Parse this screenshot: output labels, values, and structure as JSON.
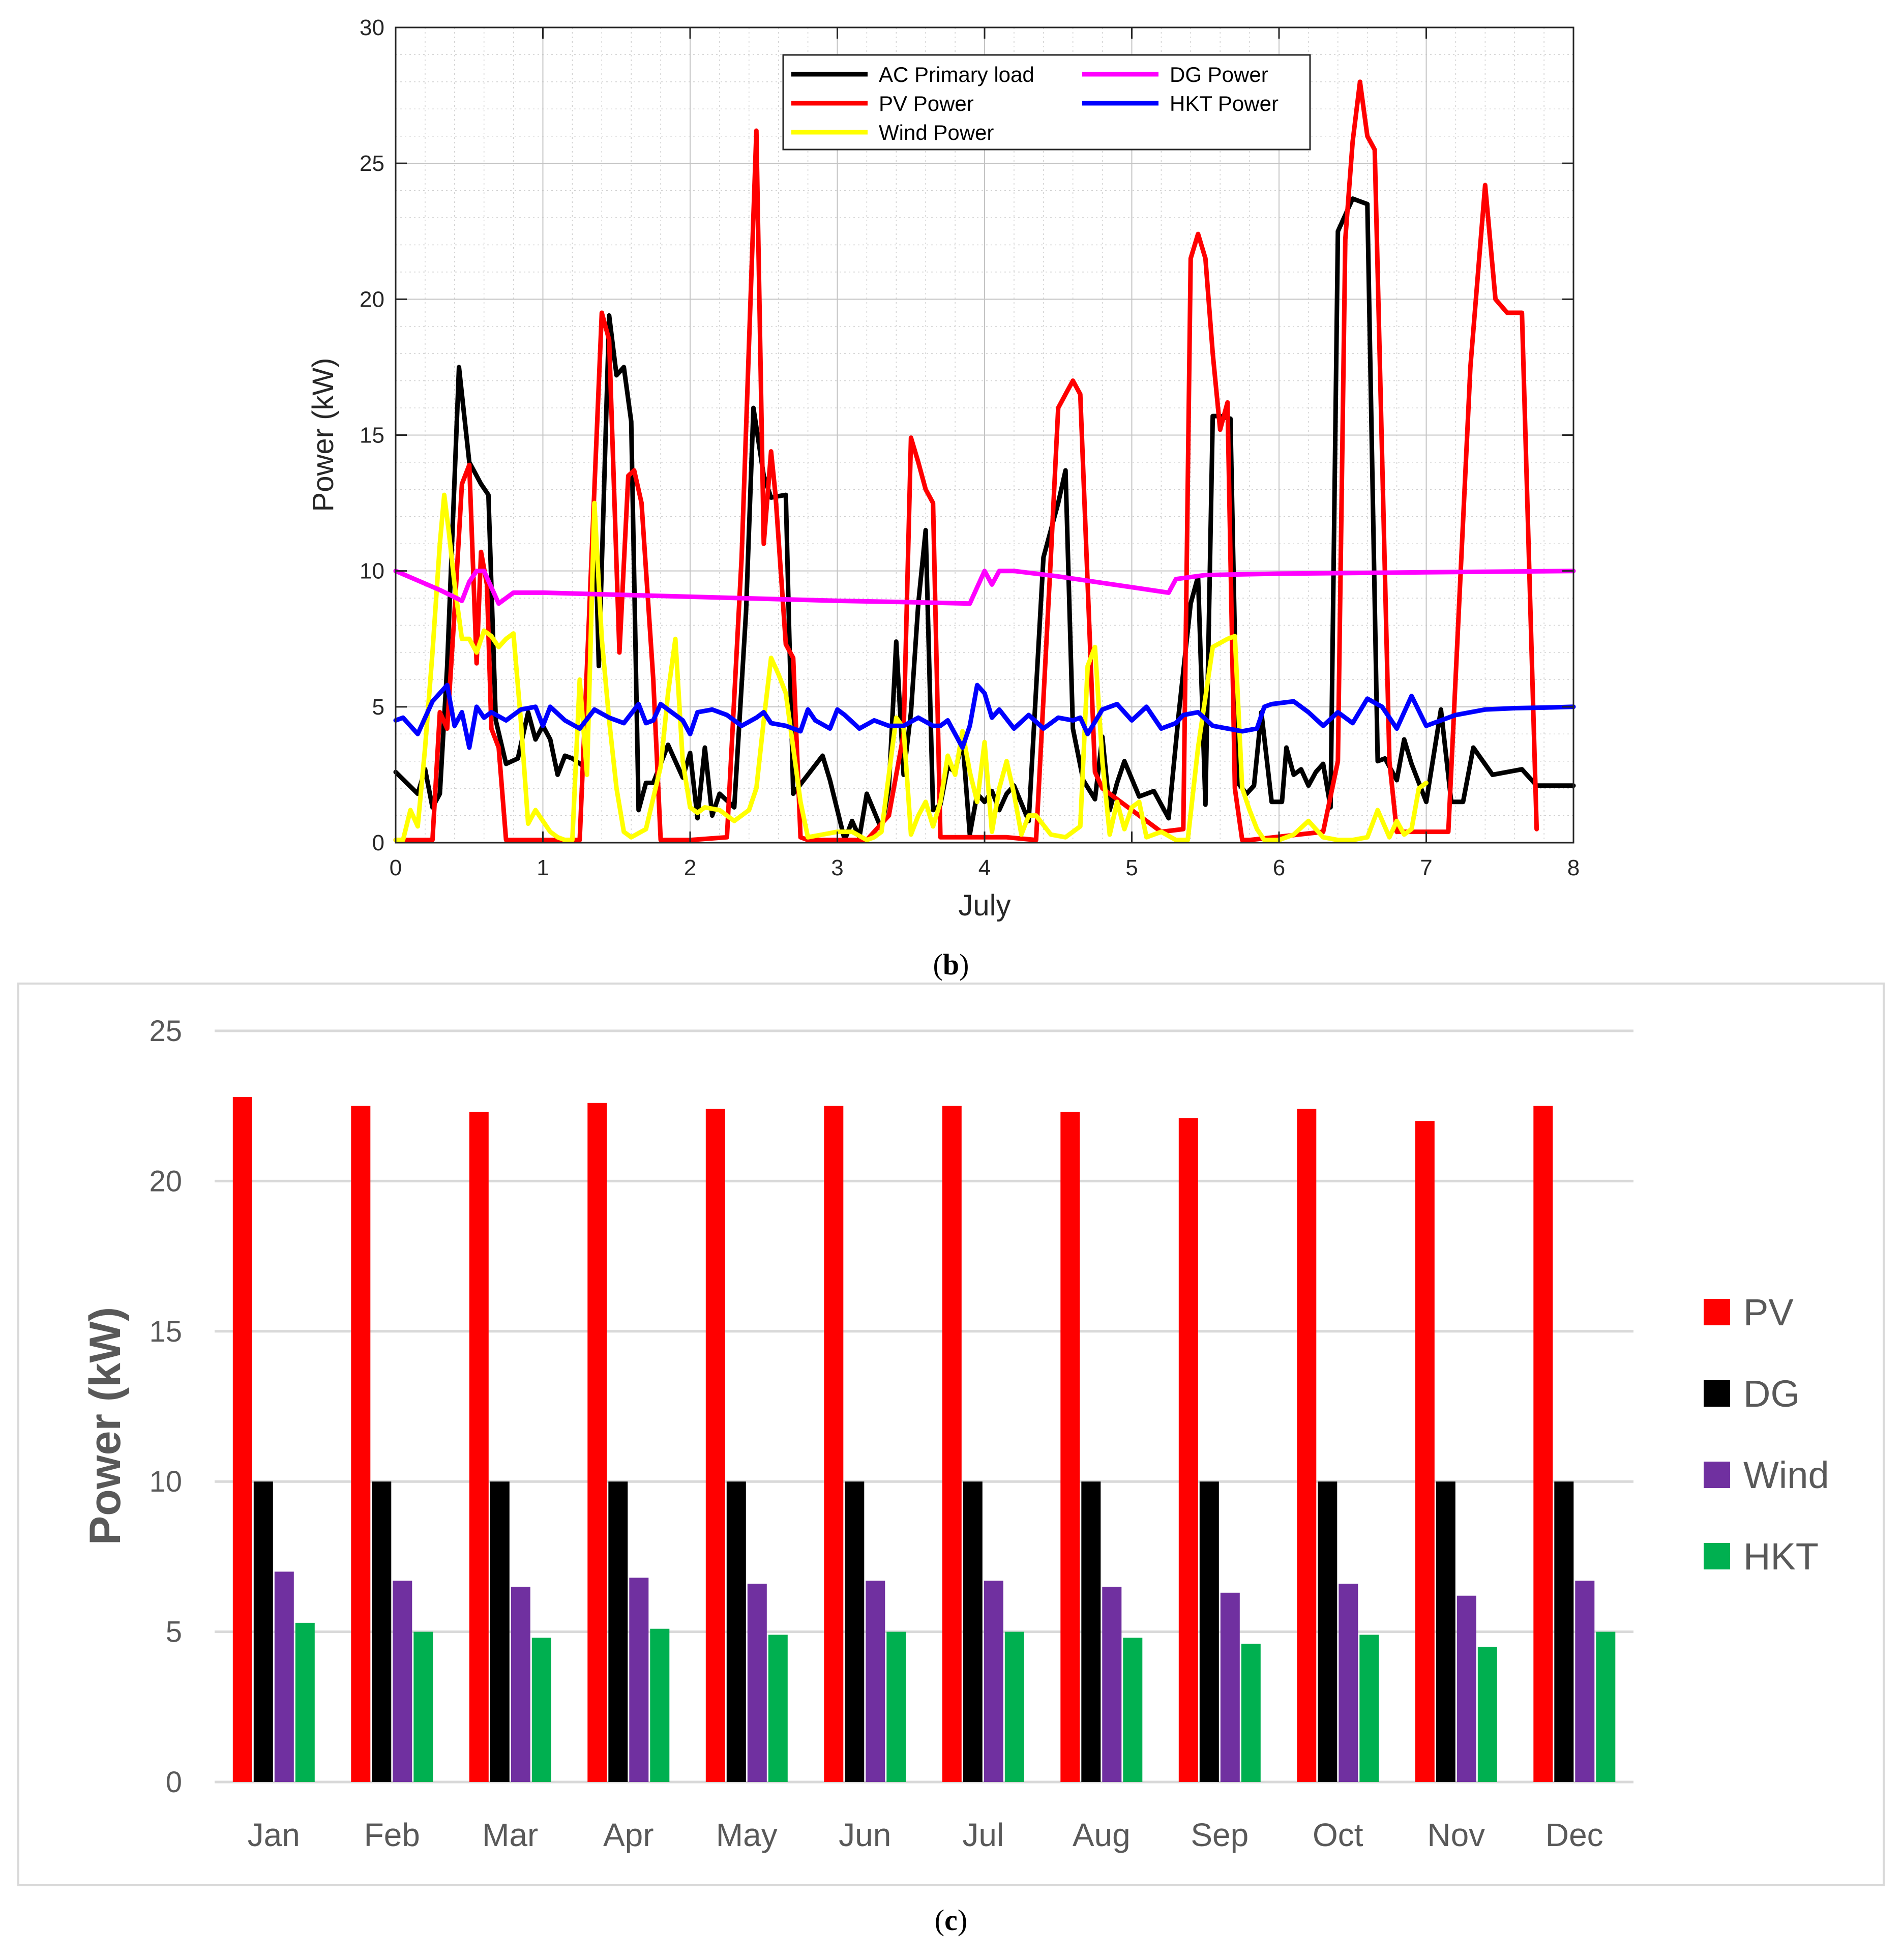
{
  "colors": {
    "ac_load": "#000000",
    "pv": "#ff0000",
    "wind": "#ffff00",
    "dg": "#ff00ff",
    "hkt_line": "#0000ff",
    "bar_pv": "#ff0000",
    "bar_dg": "#000000",
    "bar_wind": "#7030a0",
    "bar_hkt": "#00b050"
  },
  "chart_data": [
    {
      "type": "line",
      "panel_label": "(b)",
      "panel_letter": "b",
      "xlabel": "July",
      "ylabel": "Power (kW)",
      "xlim": [
        0,
        8
      ],
      "ylim": [
        0,
        30
      ],
      "xticks": [
        "0",
        "1",
        "2",
        "3",
        "4",
        "5",
        "6",
        "7",
        "8"
      ],
      "yticks": [
        "0",
        "5",
        "10",
        "15",
        "20",
        "25",
        "30"
      ],
      "grid": true,
      "legend_position": "top-center",
      "series": [
        {
          "name": "AC Primary load",
          "color_key": "ac_load",
          "x": [
            0,
            0.15,
            0.2,
            0.25,
            0.3,
            0.35,
            0.43,
            0.5,
            0.58,
            0.63,
            0.68,
            0.75,
            0.83,
            0.9,
            0.95,
            1.0,
            1.05,
            1.1,
            1.15,
            1.2,
            1.28,
            1.35,
            1.38,
            1.45,
            1.5,
            1.55,
            1.6,
            1.65,
            1.7,
            1.75,
            1.85,
            1.95,
            2.0,
            2.05,
            2.1,
            2.15,
            2.2,
            2.3,
            2.38,
            2.43,
            2.5,
            2.55,
            2.65,
            2.7,
            2.8,
            2.9,
            2.95,
            3.05,
            3.1,
            3.15,
            3.2,
            3.3,
            3.35,
            3.4,
            3.45,
            3.5,
            3.55,
            3.6,
            3.65,
            3.7,
            3.75,
            3.8,
            3.85,
            3.9,
            3.95,
            4.0,
            4.05,
            4.1,
            4.15,
            4.2,
            4.3,
            4.4,
            4.45,
            4.5,
            4.55,
            4.6,
            4.67,
            4.75,
            4.8,
            4.85,
            4.9,
            4.95,
            5.05,
            5.15,
            5.25,
            5.32,
            5.4,
            5.45,
            5.5,
            5.55,
            5.6,
            5.67,
            5.72,
            5.78,
            5.83,
            5.88,
            5.95,
            6.02,
            6.05,
            6.1,
            6.15,
            6.2,
            6.25,
            6.3,
            6.35,
            6.4,
            6.5,
            6.6,
            6.67,
            6.72,
            6.8,
            6.85,
            6.9,
            7.0,
            7.1,
            7.17,
            7.25,
            7.32,
            7.45,
            7.55,
            7.65,
            7.75,
            7.85,
            8.0
          ],
          "y": [
            2.6,
            1.8,
            2.7,
            1.3,
            1.8,
            6.5,
            17.5,
            14,
            13.2,
            12.8,
            4.5,
            2.9,
            3.1,
            4.8,
            3.8,
            4.3,
            3.8,
            2.5,
            3.2,
            3.1,
            2.8,
            12.5,
            6.5,
            19.4,
            17.2,
            17.5,
            15.5,
            1.2,
            2.2,
            2.2,
            3.6,
            2.4,
            3.3,
            0.9,
            3.5,
            1.0,
            1.8,
            1.3,
            8.5,
            16,
            13.5,
            12.7,
            12.8,
            1.8,
            2.5,
            3.2,
            2.3,
            0.1,
            0.8,
            0.2,
            1.8,
            0.5,
            2.0,
            7.4,
            2.5,
            4.8,
            8.8,
            11.5,
            1.2,
            1.4,
            2.8,
            2.6,
            3.8,
            0.3,
            1.8,
            1.5,
            1.9,
            1.2,
            1.8,
            2.1,
            0.8,
            10.5,
            11.5,
            12.5,
            13.7,
            4.2,
            2.3,
            1.6,
            3.9,
            1.2,
            2.2,
            3.0,
            1.7,
            1.9,
            0.9,
            4.8,
            8.8,
            9.8,
            1.4,
            15.7,
            15.7,
            15.6,
            2.2,
            1.8,
            2.1,
            4.8,
            1.5,
            1.5,
            3.5,
            2.5,
            2.7,
            2.1,
            2.6,
            2.9,
            1.3,
            22.5,
            23.7,
            23.5,
            3.0,
            3.1,
            2.3,
            3.8,
            2.9,
            1.5,
            4.9,
            1.5,
            1.5,
            3.5,
            2.5,
            2.6,
            2.7,
            2.1,
            2.1,
            2.1
          ]
        },
        {
          "name": "PV Power",
          "color_key": "pv",
          "x": [
            0,
            0.2,
            0.25,
            0.3,
            0.35,
            0.4,
            0.45,
            0.5,
            0.55,
            0.58,
            0.62,
            0.65,
            0.7,
            0.75,
            0.8,
            1.0,
            1.2,
            1.25,
            1.4,
            1.45,
            1.52,
            1.58,
            1.62,
            1.67,
            1.75,
            1.8,
            2.0,
            2.25,
            2.35,
            2.45,
            2.5,
            2.55,
            2.58,
            2.65,
            2.7,
            2.75,
            2.8,
            3.2,
            3.35,
            3.45,
            3.5,
            3.55,
            3.6,
            3.65,
            3.7,
            4.15,
            4.35,
            4.45,
            4.5,
            4.55,
            4.6,
            4.65,
            4.75,
            4.8,
            5.2,
            5.35,
            5.4,
            5.45,
            5.5,
            5.55,
            5.6,
            5.65,
            5.7,
            5.75,
            5.8,
            6.3,
            6.4,
            6.45,
            6.5,
            6.55,
            6.6,
            6.65,
            6.75,
            6.8,
            7.15,
            7.3,
            7.4,
            7.47,
            7.55,
            7.65,
            7.75
          ],
          "y": [
            0.1,
            0.1,
            0.1,
            4.8,
            4.2,
            8.5,
            13.2,
            13.9,
            6.6,
            10.7,
            9.5,
            4.2,
            3.5,
            0.1,
            0.1,
            0.1,
            0.1,
            0.1,
            19.5,
            18.5,
            7.0,
            13.5,
            13.7,
            12.5,
            6.0,
            0.1,
            0.1,
            0.2,
            10.5,
            26.2,
            11.0,
            14.4,
            12.8,
            7.3,
            6.8,
            0.2,
            0.1,
            0.1,
            1.0,
            4.0,
            14.9,
            14.0,
            13.0,
            12.5,
            0.2,
            0.2,
            0.1,
            10.5,
            16.0,
            16.5,
            17.0,
            16.5,
            2.6,
            2.0,
            0.4,
            0.5,
            21.5,
            22.4,
            21.5,
            18.0,
            15.2,
            16.2,
            2.0,
            0.1,
            0.1,
            0.4,
            3.0,
            22.2,
            25.8,
            28.0,
            26.0,
            25.5,
            3.0,
            0.4,
            0.4,
            17.5,
            24.2,
            20.0,
            19.5,
            19.5,
            0.5
          ]
        },
        {
          "name": "Wind Power",
          "color_key": "wind",
          "x": [
            0,
            0.05,
            0.1,
            0.15,
            0.2,
            0.25,
            0.3,
            0.33,
            0.36,
            0.4,
            0.45,
            0.5,
            0.55,
            0.6,
            0.65,
            0.7,
            0.75,
            0.8,
            0.85,
            0.9,
            0.95,
            1.0,
            1.05,
            1.1,
            1.15,
            1.2,
            1.25,
            1.3,
            1.35,
            1.4,
            1.45,
            1.5,
            1.55,
            1.6,
            1.7,
            1.8,
            1.85,
            1.9,
            1.95,
            2.0,
            2.05,
            2.1,
            2.2,
            2.3,
            2.4,
            2.45,
            2.5,
            2.55,
            2.6,
            2.65,
            2.7,
            2.75,
            2.8,
            2.9,
            3.0,
            3.1,
            3.2,
            3.25,
            3.3,
            3.35,
            3.4,
            3.45,
            3.5,
            3.55,
            3.6,
            3.65,
            3.7,
            3.75,
            3.8,
            3.85,
            3.9,
            3.95,
            4.0,
            4.05,
            4.1,
            4.15,
            4.2,
            4.25,
            4.3,
            4.35,
            4.45,
            4.55,
            4.65,
            4.7,
            4.75,
            4.8,
            4.85,
            4.9,
            4.95,
            5.0,
            5.05,
            5.1,
            5.2,
            5.3,
            5.38,
            5.45,
            5.55,
            5.65,
            5.7,
            5.75,
            5.8,
            5.85,
            5.9,
            6.0,
            6.1,
            6.2,
            6.3,
            6.4,
            6.5,
            6.6,
            6.67,
            6.75,
            6.8,
            6.85,
            6.9,
            6.95
          ],
          "y": [
            0.1,
            0.1,
            1.2,
            0.6,
            3.5,
            7.0,
            11.0,
            12.8,
            11.5,
            9.5,
            7.5,
            7.5,
            7.0,
            7.8,
            7.6,
            7.2,
            7.5,
            7.7,
            4.5,
            0.7,
            1.2,
            0.8,
            0.4,
            0.2,
            0.1,
            0.1,
            6.0,
            2.5,
            12.5,
            7.5,
            4.5,
            2.0,
            0.4,
            0.2,
            0.5,
            2.8,
            5.5,
            7.5,
            3.0,
            1.3,
            1.1,
            1.3,
            1.2,
            0.8,
            1.2,
            2.0,
            4.5,
            6.8,
            6.2,
            5.5,
            3.5,
            1.5,
            0.2,
            0.3,
            0.4,
            0.4,
            0.1,
            0.2,
            0.4,
            2.5,
            4.6,
            4.2,
            0.3,
            1.0,
            1.5,
            0.6,
            1.5,
            3.2,
            2.5,
            4.1,
            2.6,
            1.5,
            3.7,
            0.4,
            2.0,
            3.0,
            1.8,
            0.3,
            1.0,
            1.0,
            0.3,
            0.2,
            0.6,
            6.5,
            7.2,
            3.0,
            0.3,
            1.5,
            0.5,
            1.3,
            1.5,
            0.2,
            0.4,
            0.1,
            0.1,
            3.5,
            7.2,
            7.5,
            7.6,
            2.0,
            1.2,
            0.5,
            0.1,
            0.1,
            0.3,
            0.8,
            0.2,
            0.1,
            0.1,
            0.2,
            1.2,
            0.2,
            0.8,
            0.3,
            0.5,
            2.0
          ],
          "x_extra": [
            7.0
          ],
          "y_extra": [
            2.2
          ]
        },
        {
          "name": "DG Power",
          "color_key": "dg",
          "x": [
            0,
            0.3,
            0.45,
            0.5,
            0.55,
            0.6,
            0.7,
            0.8,
            1.0,
            2.0,
            3.0,
            3.5,
            3.9,
            3.95,
            4.0,
            4.05,
            4.1,
            4.2,
            4.5,
            5.0,
            5.25,
            5.3,
            5.5,
            6.0,
            7.0,
            8.0
          ],
          "y": [
            10.0,
            9.3,
            8.9,
            9.6,
            10.0,
            10.0,
            8.8,
            9.2,
            9.2,
            9.05,
            8.9,
            8.85,
            8.8,
            9.4,
            10.0,
            9.5,
            10.0,
            10.0,
            9.8,
            9.4,
            9.2,
            9.7,
            9.85,
            9.9,
            9.95,
            10.0
          ]
        },
        {
          "name": "HKT Power",
          "color_key": "hkt_line",
          "x": [
            0,
            0.05,
            0.15,
            0.25,
            0.35,
            0.4,
            0.45,
            0.5,
            0.55,
            0.6,
            0.65,
            0.75,
            0.85,
            0.95,
            1.0,
            1.05,
            1.15,
            1.25,
            1.35,
            1.45,
            1.55,
            1.65,
            1.7,
            1.75,
            1.8,
            1.85,
            1.95,
            2.0,
            2.05,
            2.15,
            2.25,
            2.35,
            2.45,
            2.5,
            2.55,
            2.65,
            2.75,
            2.8,
            2.85,
            2.95,
            3.0,
            3.05,
            3.15,
            3.25,
            3.35,
            3.45,
            3.55,
            3.65,
            3.7,
            3.75,
            3.85,
            3.9,
            3.95,
            4.0,
            4.05,
            4.1,
            4.2,
            4.3,
            4.4,
            4.5,
            4.6,
            4.65,
            4.7,
            4.8,
            4.9,
            5.0,
            5.1,
            5.2,
            5.3,
            5.35,
            5.45,
            5.55,
            5.65,
            5.75,
            5.85,
            5.9,
            5.95,
            6.1,
            6.2,
            6.3,
            6.4,
            6.5,
            6.6,
            6.7,
            6.8,
            6.9,
            7.0,
            7.1,
            7.2,
            7.4,
            7.6,
            7.8,
            8.0
          ],
          "y": [
            4.5,
            4.6,
            4.0,
            5.2,
            5.8,
            4.3,
            4.8,
            3.5,
            5.0,
            4.6,
            4.8,
            4.5,
            4.9,
            5.0,
            4.3,
            5.0,
            4.5,
            4.2,
            4.9,
            4.6,
            4.4,
            5.1,
            4.4,
            4.5,
            5.1,
            4.9,
            4.5,
            4.0,
            4.8,
            4.9,
            4.7,
            4.3,
            4.6,
            4.8,
            4.4,
            4.3,
            4.1,
            4.9,
            4.5,
            4.2,
            4.9,
            4.7,
            4.2,
            4.5,
            4.3,
            4.3,
            4.6,
            4.3,
            4.3,
            4.5,
            3.5,
            4.3,
            5.8,
            5.5,
            4.6,
            4.9,
            4.2,
            4.7,
            4.2,
            4.6,
            4.5,
            4.6,
            4.0,
            4.9,
            5.1,
            4.5,
            5.0,
            4.2,
            4.4,
            4.7,
            4.8,
            4.3,
            4.2,
            4.1,
            4.2,
            5.0,
            5.1,
            5.2,
            4.8,
            4.3,
            4.8,
            4.4,
            5.3,
            5.0,
            4.2,
            5.4,
            4.3,
            4.5,
            4.7,
            4.9,
            4.95,
            4.97,
            5.0
          ]
        }
      ]
    },
    {
      "type": "bar",
      "panel_label": "(c)",
      "panel_letter": "c",
      "xlabel": "",
      "ylabel": "Power (kW)",
      "ylim": [
        0,
        25
      ],
      "yticks": [
        "0",
        "5",
        "10",
        "15",
        "20",
        "25"
      ],
      "grid": true,
      "legend_position": "right",
      "categories": [
        "Jan",
        "Feb",
        "Mar",
        "Apr",
        "May",
        "Jun",
        "Jul",
        "Aug",
        "Sep",
        "Oct",
        "Nov",
        "Dec"
      ],
      "series": [
        {
          "name": "PV",
          "color_key": "bar_pv",
          "values": [
            22.8,
            22.5,
            22.3,
            22.6,
            22.4,
            22.5,
            22.5,
            22.3,
            22.1,
            22.4,
            22.0,
            22.5
          ]
        },
        {
          "name": "DG",
          "color_key": "bar_dg",
          "values": [
            10,
            10,
            10,
            10,
            10,
            10,
            10,
            10,
            10,
            10,
            10,
            10
          ]
        },
        {
          "name": "Wind",
          "color_key": "bar_wind",
          "values": [
            7.0,
            6.7,
            6.5,
            6.8,
            6.6,
            6.7,
            6.7,
            6.5,
            6.3,
            6.6,
            6.2,
            6.7
          ]
        },
        {
          "name": "HKT",
          "color_key": "bar_hkt",
          "values": [
            5.3,
            5.0,
            4.8,
            5.1,
            4.9,
            5.0,
            5.0,
            4.8,
            4.6,
            4.9,
            4.5,
            5.0
          ]
        }
      ]
    }
  ]
}
